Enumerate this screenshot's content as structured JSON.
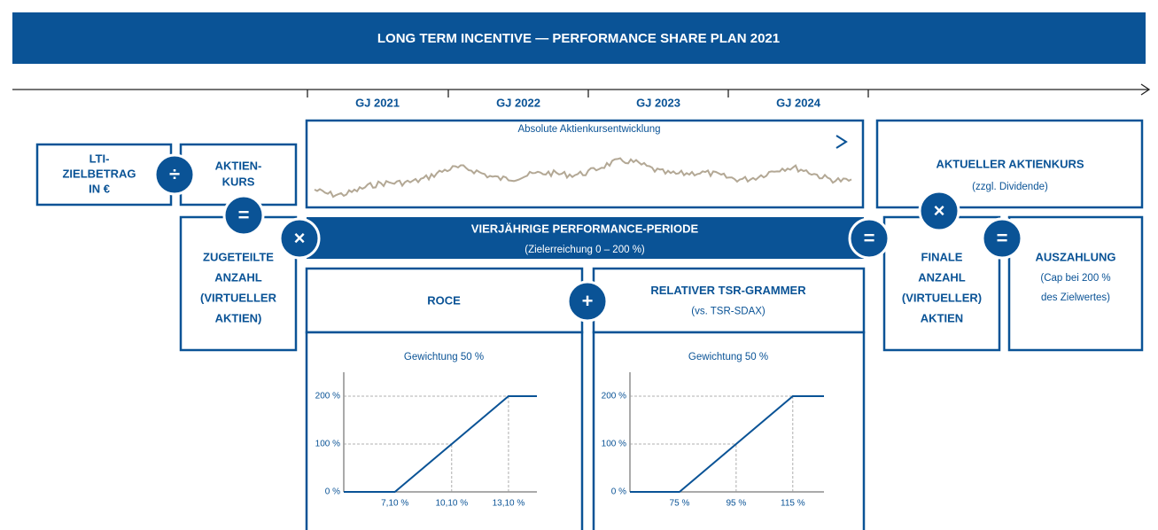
{
  "header": {
    "title": "LONG TERM INCENTIVE — PERFORMANCE SHARE PLAN 2021"
  },
  "timeline": {
    "years": [
      "GJ 2021",
      "GJ 2022",
      "GJ 2023",
      "GJ 2024"
    ]
  },
  "share_price": {
    "label": "Absolute Aktienkursentwicklung"
  },
  "boxes": [
    {
      "lines": [
        "LTI-",
        "ZIELBETRAG",
        "IN €"
      ]
    },
    {
      "lines": [
        "AKTIEN-",
        "KURS"
      ]
    },
    {
      "lines": [
        "ZUGETEILTE",
        "ANZAHL",
        "(VIRTUELLER",
        "AKTIEN)"
      ]
    },
    {
      "lines": [
        "AKTUELLER AKTIENKURS"
      ],
      "note_lines": [
        "(zzgl. Dividende)"
      ]
    },
    {
      "lines": [
        "FINALE",
        "ANZAHL",
        "(VIRTUELLER)",
        "AKTIEN"
      ]
    },
    {
      "lines": [
        "AUSZAHLUNG"
      ],
      "note_lines": [
        "(Cap bei 200 %",
        "des Zielwertes)"
      ]
    }
  ],
  "operators": [
    "÷",
    "=",
    "×",
    "=",
    "×",
    "=",
    "=",
    "+"
  ],
  "performance_period": {
    "title": "VIERJÄHRIGE PERFORMANCE-PERIODE",
    "subtitle": "(Zielerreichung 0 – 200 %)"
  },
  "kpis": [
    {
      "title_lines": [
        "ROCE"
      ],
      "weighting": "Gewichtung 50 %",
      "chart": {
        "type": "line",
        "xlim": [
          4.4,
          14.6
        ],
        "ylim": [
          0,
          250
        ],
        "xticks": [
          {
            "value": 7.1,
            "label": "7,10 %"
          },
          {
            "value": 10.1,
            "label": "10,10 %"
          },
          {
            "value": 13.1,
            "label": "13,10 %"
          }
        ],
        "yticks": [
          {
            "value": 0,
            "label": "0 %"
          },
          {
            "value": 100,
            "label": "100 %"
          },
          {
            "value": 200,
            "label": "200 %"
          }
        ],
        "x": [
          4.4,
          7.1,
          13.1,
          14.6
        ],
        "values": [
          0,
          0,
          200,
          200
        ],
        "color": "#0a5396"
      }
    },
    {
      "title_lines": [
        "RELATIVER TSR-GRAMMER"
      ],
      "note_lines": [
        "(vs. TSR-SDAX)"
      ],
      "weighting": "Gewichtung 50 %",
      "chart": {
        "type": "line",
        "xlim": [
          57.5,
          126
        ],
        "ylim": [
          0,
          250
        ],
        "xticks": [
          {
            "value": 75,
            "label": "75 %"
          },
          {
            "value": 95,
            "label": "95 %"
          },
          {
            "value": 115,
            "label": "115 %"
          }
        ],
        "yticks": [
          {
            "value": 0,
            "label": "0 %"
          },
          {
            "value": 100,
            "label": "100 %"
          },
          {
            "value": 200,
            "label": "200 %"
          }
        ],
        "x": [
          57.5,
          75,
          115,
          126
        ],
        "values": [
          0,
          0,
          200,
          200
        ],
        "color": "#0a5396"
      }
    }
  ]
}
